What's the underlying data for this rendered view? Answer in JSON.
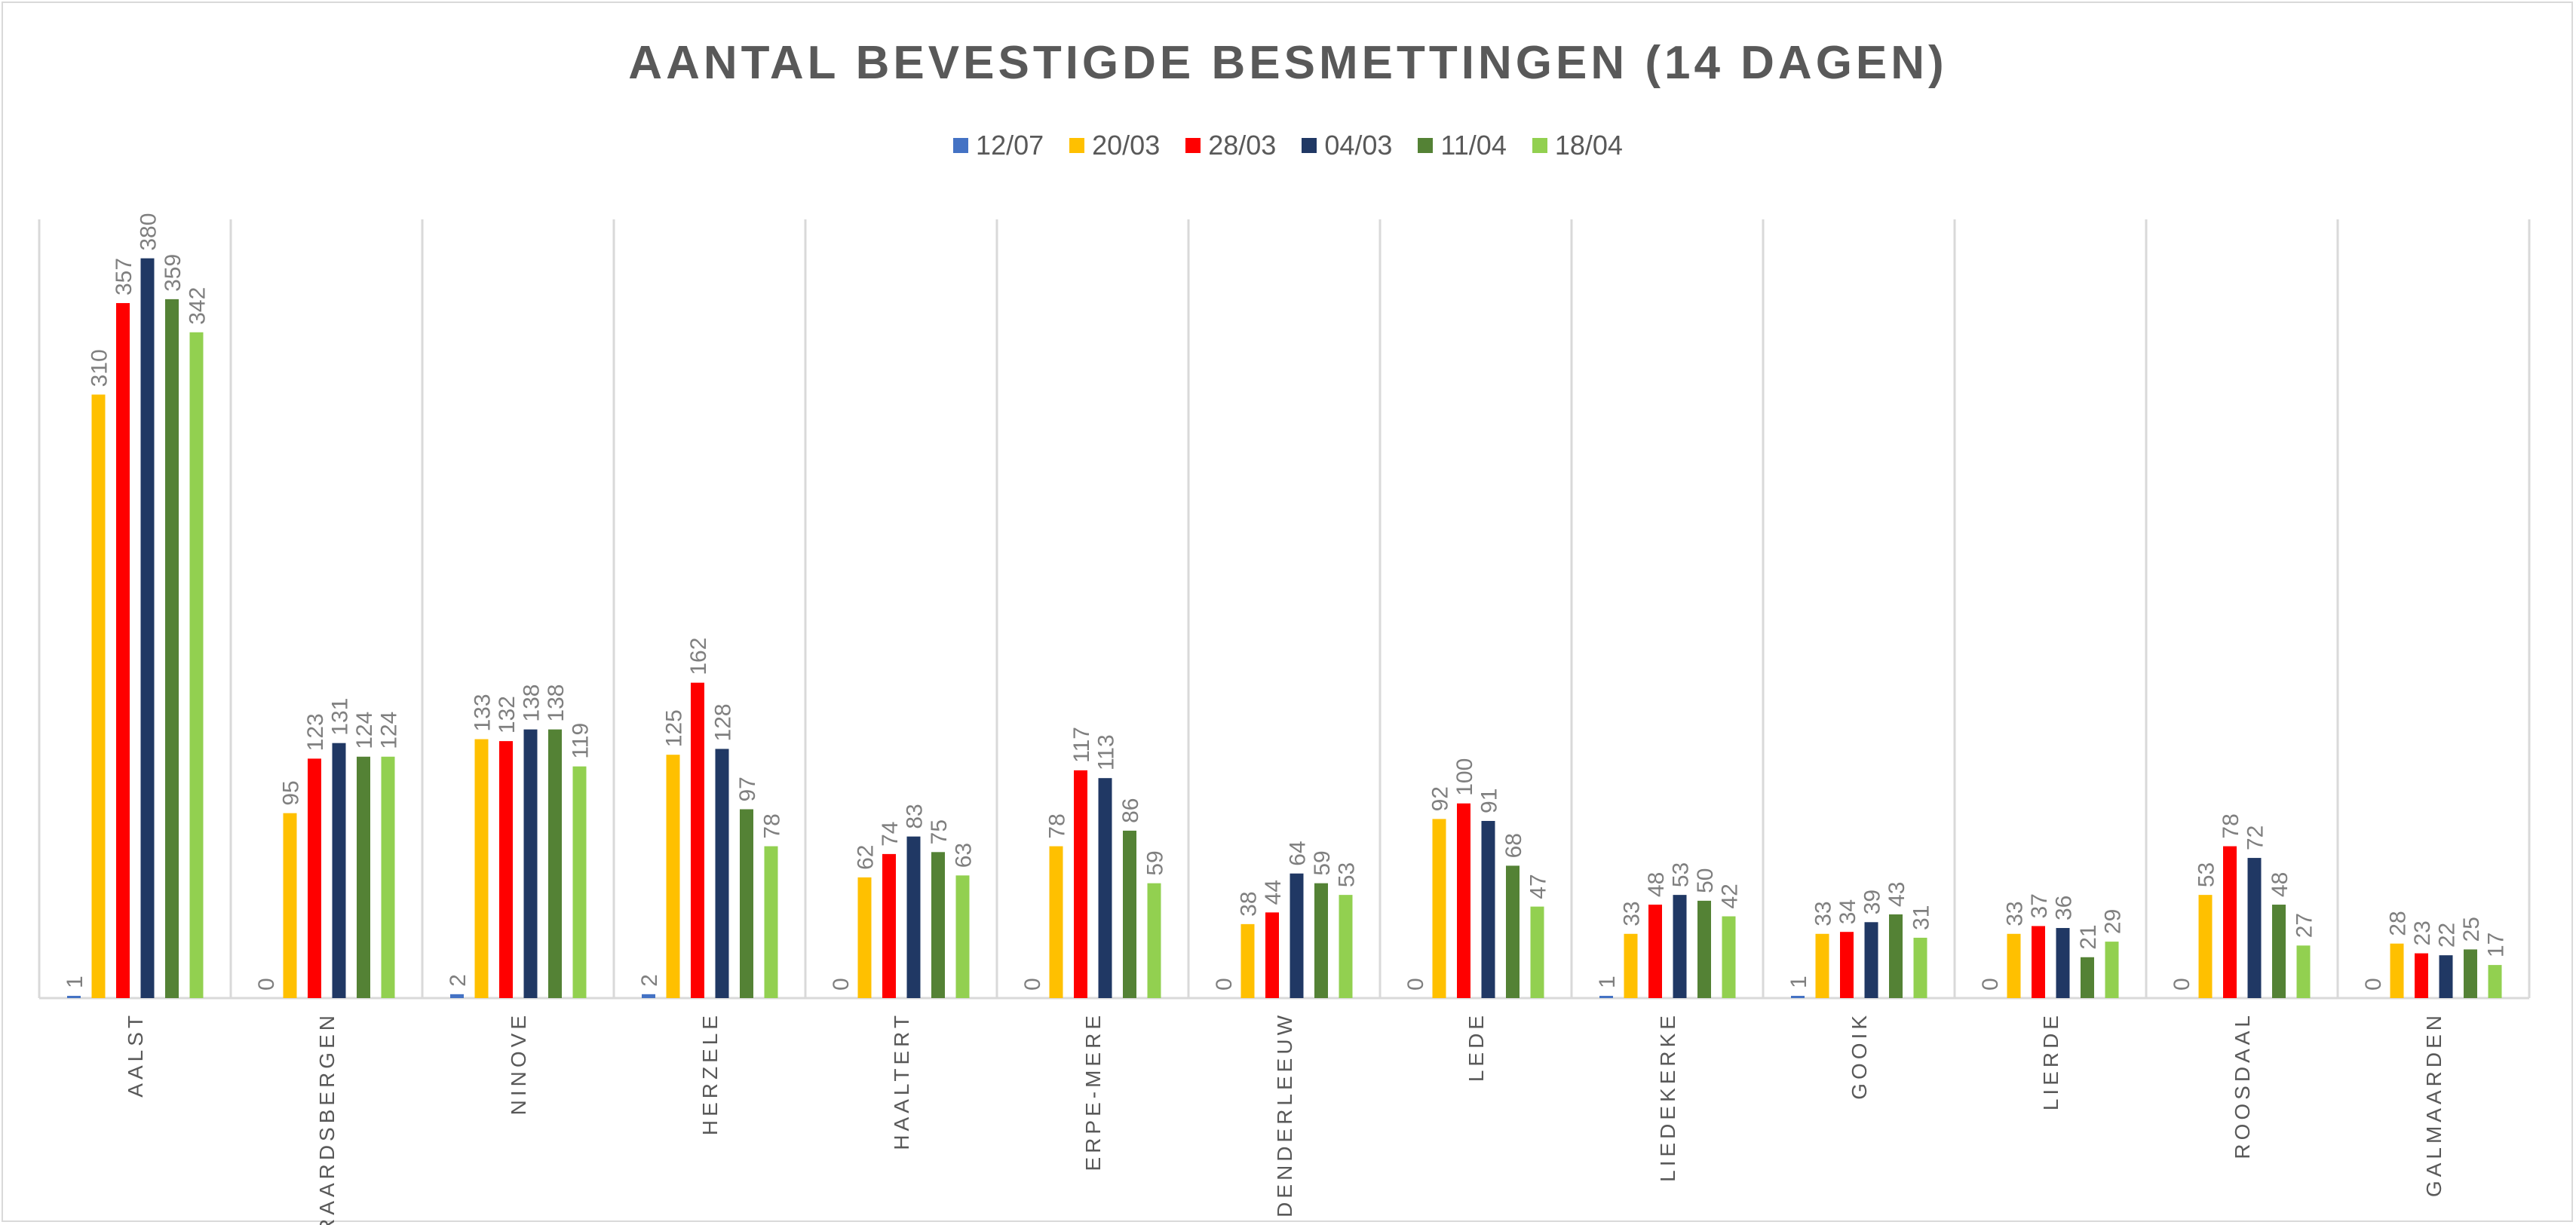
{
  "chart_data": {
    "type": "bar",
    "title": "AANTAL BEVESTIGDE BESMETTINGEN (14 DAGEN)",
    "xlabel": "",
    "ylabel": "",
    "ylim": [
      0,
      400
    ],
    "grid": "vertical category separators",
    "legend_position": "top",
    "categories": [
      "AALST",
      "GERAARDSBERGEN",
      "NINOVE",
      "HERZELE",
      "HAALTERT",
      "ERPE-MERE",
      "DENDERLEEUW",
      "LEDE",
      "LIEDEKERKE",
      "GOOIK",
      "LIERDE",
      "ROOSDAAL",
      "GALMAARDEN"
    ],
    "series": [
      {
        "name": "12/07",
        "color": "#4472c4",
        "values": [
          1,
          0,
          2,
          2,
          0,
          0,
          0,
          0,
          1,
          1,
          0,
          0,
          0
        ]
      },
      {
        "name": "20/03",
        "color": "#ffc000",
        "values": [
          310,
          95,
          133,
          125,
          62,
          78,
          38,
          92,
          33,
          33,
          33,
          53,
          28
        ]
      },
      {
        "name": "28/03",
        "color": "#ff0000",
        "values": [
          357,
          123,
          132,
          162,
          74,
          117,
          44,
          100,
          48,
          34,
          37,
          78,
          23
        ]
      },
      {
        "name": "04/03",
        "color": "#203864",
        "values": [
          380,
          131,
          138,
          128,
          83,
          113,
          64,
          91,
          53,
          39,
          36,
          72,
          22
        ]
      },
      {
        "name": "11/04",
        "color": "#548235",
        "values": [
          359,
          124,
          138,
          97,
          75,
          86,
          59,
          68,
          50,
          43,
          21,
          48,
          25
        ]
      },
      {
        "name": "18/04",
        "color": "#92d050",
        "values": [
          342,
          124,
          119,
          78,
          63,
          59,
          53,
          47,
          42,
          31,
          29,
          27,
          17
        ]
      }
    ]
  }
}
